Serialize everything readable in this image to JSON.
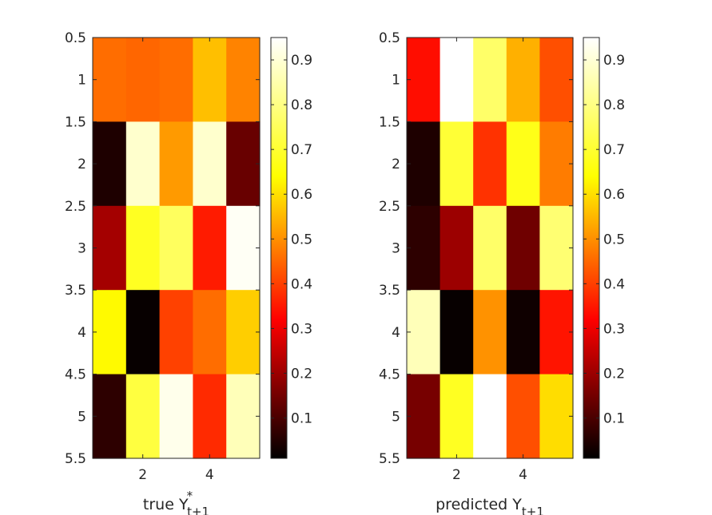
{
  "chart_data": [
    {
      "type": "heatmap",
      "xlabel": {
        "main": "true Y",
        "sup": "*",
        "sub": "t+1"
      },
      "x_ticks": [
        2,
        4
      ],
      "y_ticks": [
        "0.5",
        "1",
        "1.5",
        "2",
        "2.5",
        "3",
        "3.5",
        "4",
        "4.5",
        "5",
        "5.5"
      ],
      "xlim": [
        0.5,
        5.5
      ],
      "ylim": [
        0.5,
        5.5
      ],
      "y_reversed": true,
      "values": [
        [
          0.5,
          0.49,
          0.5,
          0.61,
          0.53
        ],
        [
          0.05,
          0.9,
          0.56,
          0.9,
          0.15
        ],
        [
          0.23,
          0.73,
          0.79,
          0.39,
          0.94
        ],
        [
          0.69,
          0.02,
          0.44,
          0.5,
          0.63
        ],
        [
          0.07,
          0.76,
          0.93,
          0.41,
          0.88
        ]
      ],
      "colorbar": {
        "ticks": [
          "0.1",
          "0.2",
          "0.3",
          "0.4",
          "0.5",
          "0.6",
          "0.7",
          "0.8",
          "0.9"
        ],
        "range": [
          0.01,
          0.95
        ],
        "colormap": "hot"
      }
    },
    {
      "type": "heatmap",
      "xlabel": {
        "main": "predicted Y",
        "sup": "",
        "sub": "t+1"
      },
      "x_ticks": [
        2,
        4
      ],
      "y_ticks": [
        "0.5",
        "1",
        "1.5",
        "2",
        "2.5",
        "3",
        "3.5",
        "4",
        "4.5",
        "5",
        "5.5"
      ],
      "xlim": [
        0.5,
        5.5
      ],
      "ylim": [
        0.5,
        5.5
      ],
      "y_reversed": true,
      "values": [
        [
          0.37,
          0.96,
          0.8,
          0.59,
          0.46
        ],
        [
          0.05,
          0.75,
          0.42,
          0.72,
          0.52
        ],
        [
          0.07,
          0.22,
          0.8,
          0.16,
          0.81
        ],
        [
          0.88,
          0.02,
          0.55,
          0.03,
          0.38
        ],
        [
          0.17,
          0.73,
          0.96,
          0.46,
          0.65
        ]
      ],
      "colorbar": {
        "ticks": [
          "0.1",
          "0.2",
          "0.3",
          "0.4",
          "0.5",
          "0.6",
          "0.7",
          "0.8",
          "0.9"
        ],
        "range": [
          0.01,
          0.95
        ],
        "colormap": "hot"
      }
    }
  ]
}
